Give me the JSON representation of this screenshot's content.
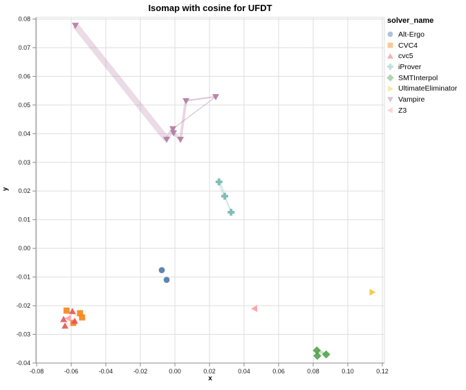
{
  "figure_title": "Isomap with cosine for UFDT",
  "chart_data": {
    "type": "scatter",
    "title": "Isomap with cosine for UFDT",
    "xlabel": "x",
    "ylabel": "y",
    "legend_title": "solver_name",
    "legend_position": "right",
    "grid": true,
    "xlim": [
      -0.0804,
      0.1212
    ],
    "ylim": [
      -0.04,
      0.0806
    ],
    "x_ticks": [
      -0.08,
      -0.06,
      -0.04,
      -0.02,
      0,
      0.02,
      0.04,
      0.06,
      0.08,
      0.1,
      0.12
    ],
    "x_tick_labels": [
      "-0.08",
      "-0.06",
      "-0.04",
      "-0.02",
      "0.00",
      "0.02",
      "0.04",
      "0.06",
      "0.08",
      "0.10",
      "0.12"
    ],
    "y_ticks": [
      -0.04,
      -0.03,
      -0.02,
      -0.01,
      0,
      0.01,
      0.02,
      0.03,
      0.04,
      0.05,
      0.06,
      0.07,
      0.08
    ],
    "y_tick_labels": [
      "-0.04",
      "-0.03",
      "-0.02",
      "-0.01",
      "0.00",
      "0.01",
      "0.02",
      "0.03",
      "0.04",
      "0.05",
      "0.06",
      "0.07",
      "0.08"
    ],
    "colors": {
      "grid": "#dddddd",
      "view_border": "#dddddd",
      "axis_domain": "#888888",
      "tick": "#888888",
      "text": "#1a1a1a"
    },
    "series": [
      {
        "name": "Alt-Ergo",
        "marker": "circle",
        "color": "#4c78a8",
        "points": [
          [
            -0.0076,
            -0.0076
          ],
          [
            -0.0048,
            -0.011
          ]
        ],
        "segments": []
      },
      {
        "name": "CVC4",
        "marker": "square",
        "color": "#f58518",
        "points": [
          [
            -0.0627,
            -0.0217
          ],
          [
            -0.0549,
            -0.0226
          ],
          [
            -0.0537,
            -0.0241
          ],
          [
            -0.0588,
            -0.026
          ]
        ],
        "segments": [
          {
            "from": 0,
            "to": 2,
            "width": 3,
            "opacity": 0.18
          }
        ]
      },
      {
        "name": "cvc5",
        "marker": "triangle-up",
        "color": "#e45756",
        "points": [
          [
            -0.0593,
            -0.022
          ],
          [
            -0.0644,
            -0.0248
          ],
          [
            -0.058,
            -0.0254
          ],
          [
            -0.0636,
            -0.0271
          ]
        ],
        "segments": [
          {
            "from": 0,
            "to": 3,
            "width": 2,
            "opacity": 0.15
          }
        ]
      },
      {
        "name": "iProver",
        "marker": "plus",
        "color": "#72b7b2",
        "points": [
          [
            0.0255,
            0.0232
          ],
          [
            0.0288,
            0.0182
          ],
          [
            0.0325,
            0.0126
          ]
        ],
        "segments": [
          {
            "from": 0,
            "to": 1,
            "width": 4.5,
            "opacity": 0.25
          },
          {
            "from": 1,
            "to": 2,
            "width": 2,
            "opacity": 0.35
          }
        ]
      },
      {
        "name": "SMTInterpol",
        "marker": "diamond",
        "color": "#54a24b",
        "points": [
          [
            0.0821,
            -0.0356
          ],
          [
            0.0824,
            -0.0375
          ],
          [
            0.0875,
            -0.037
          ]
        ],
        "segments": [
          {
            "from": 0,
            "to": 2,
            "width": 4.5,
            "opacity": 0.3
          }
        ]
      },
      {
        "name": "UltimateEliminator",
        "marker": "triangle-right",
        "color": "#eeca3b",
        "points": [
          [
            0.1141,
            -0.0153
          ]
        ],
        "segments": []
      },
      {
        "name": "Vampire",
        "marker": "triangle-down",
        "color": "#b279a2",
        "points": [
          [
            -0.0576,
            0.0778
          ],
          [
            -0.0048,
            0.038
          ],
          [
            -0.0012,
            0.0417
          ],
          [
            -0.0008,
            0.0403
          ],
          [
            0.0032,
            0.038
          ],
          [
            0.0064,
            0.0515
          ],
          [
            0.0236,
            0.0529
          ]
        ],
        "segments": [
          {
            "from": 0,
            "to": 1,
            "width": 9,
            "opacity": 0.27
          },
          {
            "from": 1,
            "to": 2,
            "width": 6,
            "opacity": 0.25
          },
          {
            "from": 3,
            "to": 4,
            "width": 4.5,
            "opacity": 0.25
          },
          {
            "from": 4,
            "to": 5,
            "width": 4,
            "opacity": 0.3
          },
          {
            "from": 5,
            "to": 6,
            "width": 2.2,
            "opacity": 0.4
          },
          {
            "from": 2,
            "to": 6,
            "width": 1.3,
            "opacity": 0.45
          }
        ]
      },
      {
        "name": "Z3",
        "marker": "triangle-left",
        "color": "#ff9da6",
        "points": [
          [
            -0.0617,
            -0.0244
          ],
          [
            0.0461,
            -0.021
          ]
        ],
        "segments": []
      }
    ]
  }
}
